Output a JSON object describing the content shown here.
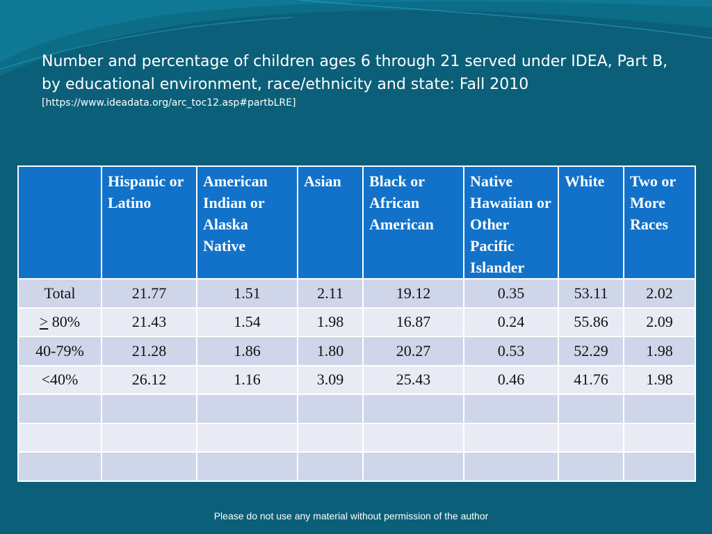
{
  "slide": {
    "title": "Number and percentage of children ages 6 through 21 served under IDEA, Part B, by educational environment, race/ethnicity and state: Fall 2010",
    "source": "[https://www.ideadata.org/arc_toc12.asp#partbLRE]",
    "footer": "Please do not use any material without permission of the author"
  },
  "table": {
    "headers": [
      "",
      "Hispanic or Latino",
      "American Indian or Alaska Native",
      "Asian",
      "Black or African American",
      "Native Hawaiian or Other Pacific Islander",
      "White",
      "Two or More Races"
    ],
    "rows": [
      {
        "label": "Total",
        "cells": [
          "21.77",
          "1.51",
          "2.11",
          "19.12",
          "0.35",
          "53.11",
          "2.02"
        ]
      },
      {
        "label_prefix": ">",
        "label_rest": " 80%",
        "cells": [
          "21.43",
          "1.54",
          "1.98",
          "16.87",
          "0.24",
          "55.86",
          "2.09"
        ]
      },
      {
        "label": "40-79%",
        "cells": [
          "21.28",
          "1.86",
          "1.80",
          "20.27",
          "0.53",
          "52.29",
          "1.98"
        ]
      },
      {
        "label": "<40%",
        "cells": [
          "26.12",
          "1.16",
          "3.09",
          "25.43",
          "0.46",
          "41.76",
          "1.98"
        ]
      }
    ]
  },
  "colors": {
    "background": "#0b5f78",
    "header_fill": "#1272c9",
    "row_odd": "#cfd6e9",
    "row_even": "#e8ebf4"
  }
}
